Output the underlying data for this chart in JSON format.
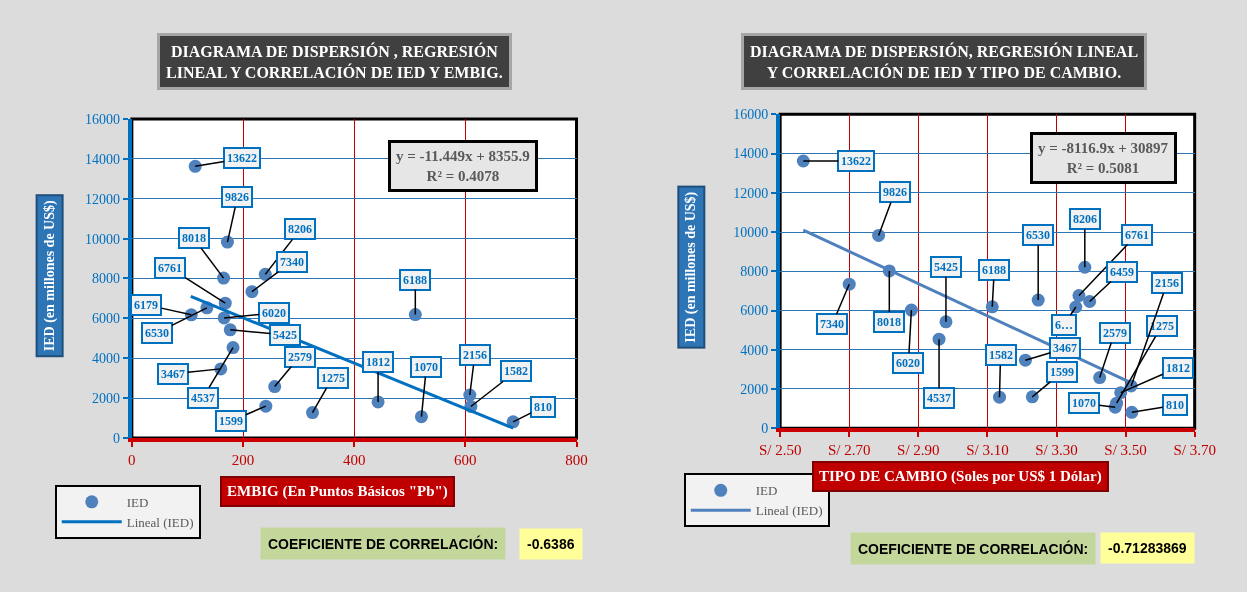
{
  "chart_data": [
    {
      "type": "scatter",
      "title": "DIAGRAMA DE DISPERSIÓN , REGRESIÓN\nLINEAL Y CORRELACIÓN DE IED Y EMBIG.",
      "xlabel": "EMBIG (En Puntos Básicos \"Pb\")",
      "ylabel": "IED (en millones de US$)",
      "xlim": [
        0,
        800
      ],
      "xticks": [
        0,
        200,
        400,
        600,
        800
      ],
      "ylim": [
        0,
        16000
      ],
      "yticks": [
        0,
        2000,
        4000,
        6000,
        8000,
        10000,
        12000,
        14000,
        16000
      ],
      "grid": true,
      "legend": "bottom left",
      "annotations": [
        "y = -11.449x + 8355.9",
        "R² = 0.4078",
        "COEFICIENTE DE CORRELACIÓN:",
        "-0.6386"
      ],
      "series": [
        {
          "name": "IED",
          "color": "#4f81bd",
          "marker": "circle",
          "x": [
            114,
            166,
            168,
            172,
            165,
            240,
            216,
            107,
            177,
            135,
            160,
            182,
            241,
            257,
            325,
            443,
            510,
            521,
            608,
            610,
            686
          ],
          "values": [
            13622,
            6020,
            6761,
            9826,
            8018,
            8206,
            7340,
            6179,
            5425,
            6530,
            3467,
            4537,
            1599,
            2579,
            1275,
            1812,
            6188,
            1070,
            2156,
            1582,
            810
          ],
          "value_labels": [
            "13622",
            "6020",
            "6761",
            "9826",
            "8018",
            "8206",
            "7340",
            "6179",
            "5425",
            "6530",
            "3467",
            "4537",
            "1599",
            "2579",
            "1275",
            "1812",
            "6188",
            "1070",
            "2156",
            "1582",
            "810"
          ]
        },
        {
          "name": "Lineal (IED)",
          "type": "line",
          "marker": "none",
          "color": "#0070c0",
          "x": [
            106,
            686
          ],
          "values": [
            7100,
            500
          ]
        }
      ]
    },
    {
      "type": "scatter",
      "title": "DIAGRAMA DE DISPERSIÓN, REGRESIÓN LINEAL\nY CORRELACIÓN DE IED Y TIPO DE CAMBIO.",
      "xlabel": "TIPO DE CAMBIO (Soles por US$ 1 Dólar)",
      "ylabel": "IED (en millones de US$)",
      "xlim": [
        2.5,
        3.7
      ],
      "xticks": [
        {
          "value": 2.5,
          "label": "S/ 2.50"
        },
        {
          "value": 2.7,
          "label": "S/ 2.70"
        },
        {
          "value": 2.9,
          "label": "S/ 2.90"
        },
        {
          "value": 3.1,
          "label": "S/ 3.10"
        },
        {
          "value": 3.3,
          "label": "S/ 3.30"
        },
        {
          "value": 3.5,
          "label": "S/ 3.50"
        },
        {
          "value": 3.7,
          "label": "S/ 3.70"
        }
      ],
      "ylim": [
        0,
        16000
      ],
      "yticks": [
        0,
        2000,
        4000,
        6000,
        8000,
        10000,
        12000,
        14000,
        16000
      ],
      "grid": true,
      "legend": "bottom left",
      "annotations": [
        "y = -8116.9x + 30897",
        "R² = 0.5081",
        "COEFICIENTE DE CORRELACIÓN:",
        "-0.71283869"
      ],
      "series": [
        {
          "name": "IED",
          "color": "#4f81bd",
          "marker": "circle",
          "x": [
            2.567,
            2.785,
            2.7,
            2.816,
            2.88,
            2.98,
            2.96,
            3.114,
            3.135,
            3.21,
            3.23,
            3.247,
            3.382,
            3.365,
            3.396,
            3.356,
            3.425,
            3.47,
            3.474,
            3.486,
            3.516,
            3.518
          ],
          "values": [
            13622,
            9826,
            7340,
            8018,
            6020,
            5425,
            4537,
            6188,
            1582,
            3467,
            1599,
            6530,
            8206,
            6761,
            6459,
            6179,
            2579,
            1070,
            1275,
            1812,
            2156,
            810
          ],
          "value_labels": [
            "13622",
            "9826",
            "7340",
            "8018",
            "6020",
            "5425",
            "4537",
            "6188",
            "1582",
            "3467",
            "1599",
            "6530",
            "8206",
            "6761",
            "6459",
            "6…",
            "2579",
            "1070",
            "1275",
            "1812",
            "2156",
            "810"
          ]
        },
        {
          "name": "Lineal (IED)",
          "type": "line",
          "marker": "none",
          "color": "#4f81bd",
          "x": [
            2.567,
            3.518
          ],
          "values": [
            10100,
            2300
          ]
        }
      ]
    }
  ]
}
